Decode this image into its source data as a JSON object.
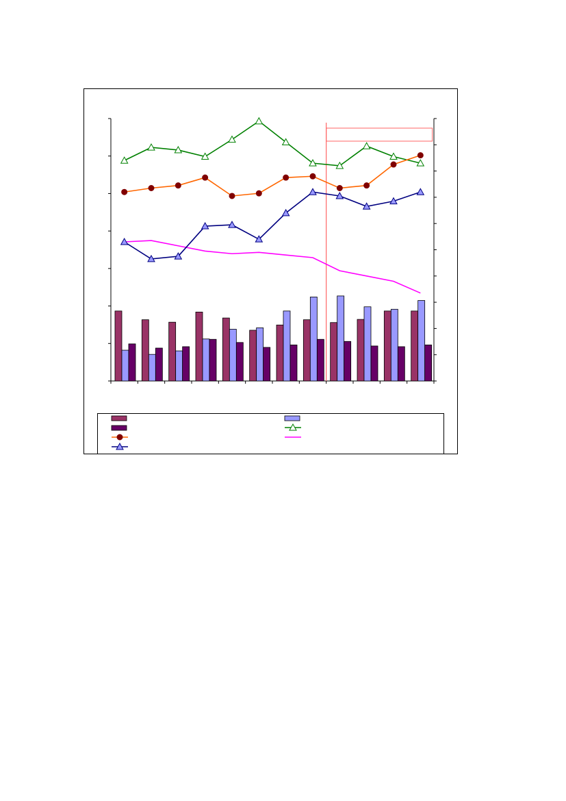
{
  "chart_data": {
    "type": "bar",
    "title": "",
    "xlabel": "",
    "ylabel": "",
    "categories": [
      "",
      "",
      "",
      "",
      "",
      "",
      "",
      "",
      "",
      "",
      "",
      ""
    ],
    "left_axis": {
      "ylim": [
        0,
        7.5
      ],
      "tick_count": 8
    },
    "right_axis": {
      "ylim": [
        0,
        10
      ],
      "tick_count": 11
    },
    "grid": false,
    "legend_placement": "bottom",
    "annotation": {
      "text": "",
      "color": "#ff6666"
    },
    "divider_after_category": 8,
    "bar_series": [
      {
        "name": "",
        "color": "#993366",
        "values": [
          2.0,
          1.75,
          1.68,
          1.97,
          1.8,
          1.45,
          1.6,
          1.75,
          1.67,
          1.76,
          2.0,
          2.0
        ]
      },
      {
        "name": "",
        "color": "#9999ff",
        "values": [
          0.88,
          0.76,
          0.86,
          1.2,
          1.48,
          1.52,
          2.0,
          2.4,
          2.43,
          2.12,
          2.05,
          2.3
        ]
      },
      {
        "name": "",
        "color": "#660066",
        "values": [
          1.06,
          0.94,
          0.98,
          1.19,
          1.1,
          0.96,
          1.03,
          1.19,
          1.13,
          1.0,
          0.98,
          1.03
        ]
      }
    ],
    "line_series": [
      {
        "name": "",
        "color": "#008000",
        "marker": "triangle-open",
        "values": [
          8.4,
          8.9,
          8.8,
          8.55,
          9.2,
          9.9,
          9.1,
          8.3,
          8.2,
          8.95,
          8.55,
          8.3
        ]
      },
      {
        "name": "",
        "color": "#ff6600",
        "marker_color": "#800000",
        "marker": "circle",
        "values": [
          7.2,
          7.35,
          7.45,
          7.75,
          7.05,
          7.15,
          7.75,
          7.8,
          7.35,
          7.45,
          8.25,
          8.6
        ]
      },
      {
        "name": "",
        "color": "#ff00ff",
        "marker": "none",
        "values": [
          5.3,
          5.35,
          5.15,
          4.95,
          4.85,
          4.9,
          4.8,
          4.7,
          4.2,
          4.0,
          3.8,
          3.35
        ]
      },
      {
        "name": "",
        "color": "#000080",
        "marker": "triangle-filled",
        "marker_color": "#9999ff",
        "values": [
          5.3,
          4.65,
          4.75,
          5.9,
          5.95,
          5.4,
          6.4,
          7.2,
          7.05,
          6.65,
          6.85,
          7.2
        ]
      }
    ],
    "legend": [
      {
        "name": "",
        "kind": "bar",
        "color": "#993366"
      },
      {
        "name": "",
        "kind": "bar",
        "color": "#9999ff"
      },
      {
        "name": "",
        "kind": "bar",
        "color": "#660066"
      },
      {
        "name": "",
        "kind": "line",
        "color": "#008000",
        "marker": "triangle-open"
      },
      {
        "name": "",
        "kind": "line",
        "color": "#ff6600",
        "marker": "circle",
        "marker_color": "#800000"
      },
      {
        "name": "",
        "kind": "line",
        "color": "#ff00ff",
        "marker": "none"
      },
      {
        "name": "",
        "kind": "line",
        "color": "#000080",
        "marker": "triangle-filled",
        "marker_color": "#9999ff"
      }
    ]
  }
}
